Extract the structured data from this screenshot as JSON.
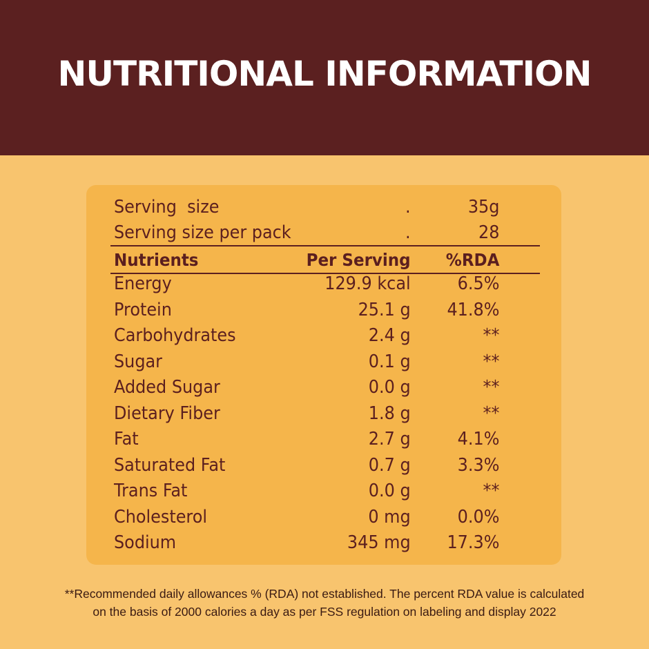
{
  "header": {
    "title": "NUTRITIONAL INFORMATION"
  },
  "serving": [
    [
      "Serving  size",
      ".",
      "35g"
    ],
    [
      "Serving size per pack",
      ".",
      "28"
    ]
  ],
  "table": {
    "columns": [
      "Nutrients",
      "Per Serving",
      "%RDA"
    ],
    "rows": [
      [
        "Energy",
        "129.9 kcal",
        "6.5%"
      ],
      [
        "Protein",
        "25.1 g",
        "41.8%"
      ],
      [
        "Carbohydrates",
        "2.4 g",
        "**"
      ],
      [
        "Sugar",
        "0.1 g",
        "**"
      ],
      [
        "Added Sugar",
        "0.0 g",
        "**"
      ],
      [
        "Dietary Fiber",
        "1.8 g",
        "**"
      ],
      [
        "Fat",
        "2.7 g",
        "4.1%"
      ],
      [
        "Saturated Fat",
        "0.7 g",
        "3.3%"
      ],
      [
        "Trans Fat",
        "0.0 g",
        "**"
      ],
      [
        "Cholesterol",
        "0 mg",
        "0.0%"
      ],
      [
        "Sodium",
        "345 mg",
        "17.3%"
      ]
    ]
  },
  "footnote": [
    "**Recommended daily allowances % (RDA) not established. The percent RDA value is calculated",
    "on the basis of 2000 calories a day as per FSS regulation on labeling and display 2022"
  ]
}
